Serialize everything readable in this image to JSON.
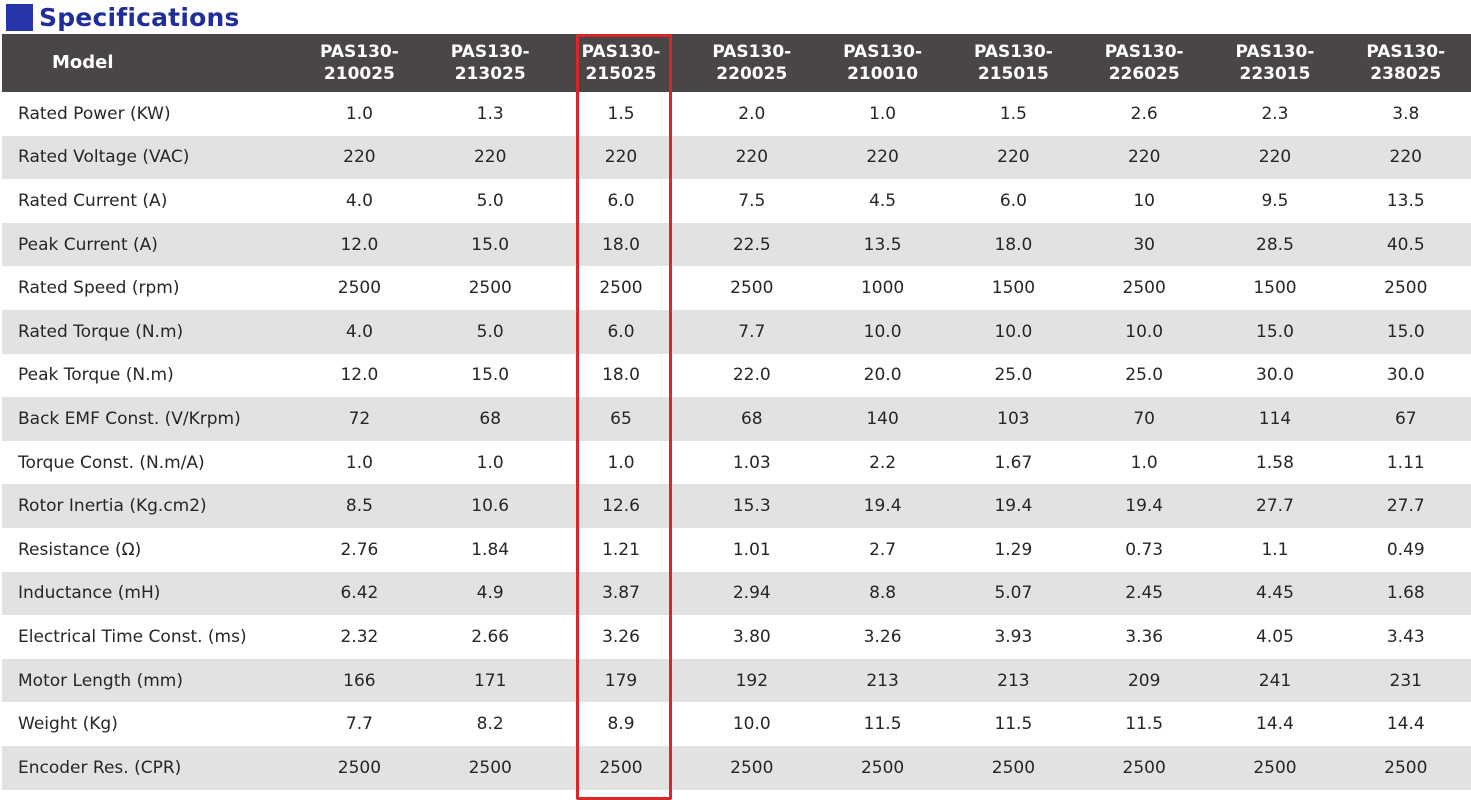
{
  "title": "Specifications",
  "colors": {
    "title": "#1f2e98",
    "title_square": "#2636a8",
    "header_bg": "#4a4645",
    "stripe": "#e2e2e2",
    "highlight": "#d9262c"
  },
  "highlighted_column": "PAS130-215025",
  "table": {
    "header_label": "Model",
    "models": [
      {
        "line1": "PAS130-",
        "line2": "210025"
      },
      {
        "line1": "PAS130-",
        "line2": "213025"
      },
      {
        "line1": "PAS130-",
        "line2": "215025"
      },
      {
        "line1": "PAS130-",
        "line2": "220025"
      },
      {
        "line1": "PAS130-",
        "line2": "210010"
      },
      {
        "line1": "PAS130-",
        "line2": "215015"
      },
      {
        "line1": "PAS130-",
        "line2": "226025"
      },
      {
        "line1": "PAS130-",
        "line2": "223015"
      },
      {
        "line1": "PAS130-",
        "line2": "238025"
      }
    ],
    "rows": [
      {
        "label": "Rated Power (KW)",
        "values": [
          "1.0",
          "1.3",
          "1.5",
          "2.0",
          "1.0",
          "1.5",
          "2.6",
          "2.3",
          "3.8"
        ]
      },
      {
        "label": "Rated Voltage (VAC)",
        "values": [
          "220",
          "220",
          "220",
          "220",
          "220",
          "220",
          "220",
          "220",
          "220"
        ]
      },
      {
        "label": "Rated Current (A)",
        "values": [
          "4.0",
          "5.0",
          "6.0",
          "7.5",
          "4.5",
          "6.0",
          "10",
          "9.5",
          "13.5"
        ]
      },
      {
        "label": "Peak Current (A)",
        "values": [
          "12.0",
          "15.0",
          "18.0",
          "22.5",
          "13.5",
          "18.0",
          "30",
          "28.5",
          "40.5"
        ]
      },
      {
        "label": "Rated Speed (rpm)",
        "values": [
          "2500",
          "2500",
          "2500",
          "2500",
          "1000",
          "1500",
          "2500",
          "1500",
          "2500"
        ]
      },
      {
        "label": "Rated Torque (N.m)",
        "values": [
          "4.0",
          "5.0",
          "6.0",
          "7.7",
          "10.0",
          "10.0",
          "10.0",
          "15.0",
          "15.0"
        ]
      },
      {
        "label": "Peak Torque (N.m)",
        "values": [
          "12.0",
          "15.0",
          "18.0",
          "22.0",
          "20.0",
          "25.0",
          "25.0",
          "30.0",
          "30.0"
        ]
      },
      {
        "label": "Back EMF Const. (V/Krpm)",
        "values": [
          "72",
          "68",
          "65",
          "68",
          "140",
          "103",
          "70",
          "114",
          "67"
        ]
      },
      {
        "label": "Torque Const. (N.m/A)",
        "values": [
          "1.0",
          "1.0",
          "1.0",
          "1.03",
          "2.2",
          "1.67",
          "1.0",
          "1.58",
          "1.11"
        ]
      },
      {
        "label": "Rotor Inertia (Kg.cm2)",
        "values": [
          "8.5",
          "10.6",
          "12.6",
          "15.3",
          "19.4",
          "19.4",
          "19.4",
          "27.7",
          "27.7"
        ]
      },
      {
        "label": "Resistance (Ω)",
        "values": [
          "2.76",
          "1.84",
          "1.21",
          "1.01",
          "2.7",
          "1.29",
          "0.73",
          "1.1",
          "0.49"
        ]
      },
      {
        "label": "Inductance (mH)",
        "values": [
          "6.42",
          "4.9",
          "3.87",
          "2.94",
          "8.8",
          "5.07",
          "2.45",
          "4.45",
          "1.68"
        ]
      },
      {
        "label": "Electrical Time Const. (ms)",
        "values": [
          "2.32",
          "2.66",
          "3.26",
          "3.80",
          "3.26",
          "3.93",
          "3.36",
          "4.05",
          "3.43"
        ]
      },
      {
        "label": "Motor Length (mm)",
        "values": [
          "166",
          "171",
          "179",
          "192",
          "213",
          "213",
          "209",
          "241",
          "231"
        ]
      },
      {
        "label": "Weight (Kg)",
        "values": [
          "7.7",
          "8.2",
          "8.9",
          "10.0",
          "11.5",
          "11.5",
          "11.5",
          "14.4",
          "14.4"
        ]
      },
      {
        "label": "Encoder Res. (CPR)",
        "values": [
          "2500",
          "2500",
          "2500",
          "2500",
          "2500",
          "2500",
          "2500",
          "2500",
          "2500"
        ]
      }
    ]
  }
}
